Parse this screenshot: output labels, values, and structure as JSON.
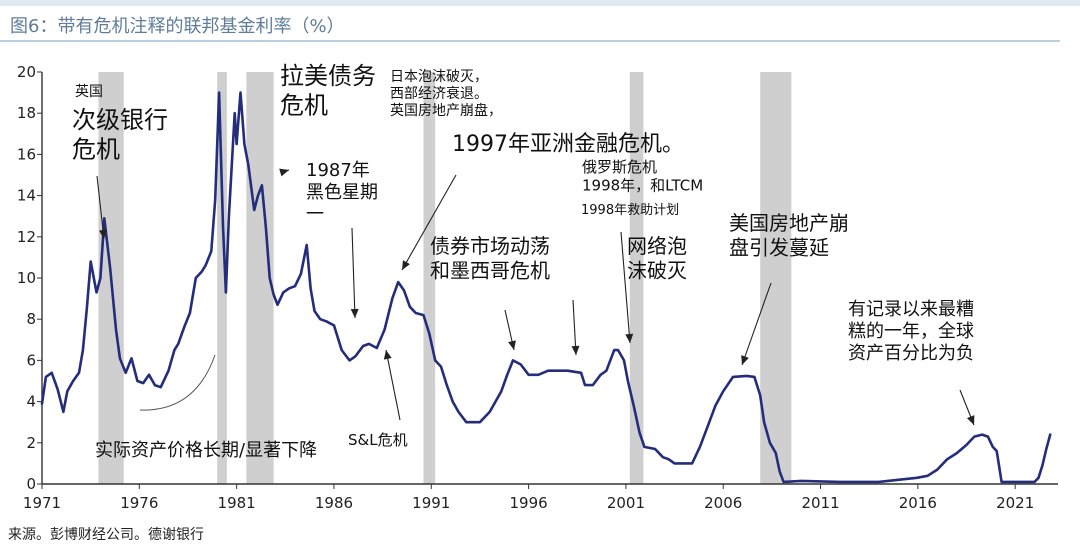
{
  "title": "图6：带有危机注释的联邦基金利率（%）",
  "source": "来源。彭博财经公司。德谢银行",
  "colors": {
    "line": "#232d7c",
    "recession": "#cfcfcf",
    "axis": "#333333",
    "title": "#5f7d9a",
    "arrow": "#222222"
  },
  "chart_data": {
    "type": "line",
    "title": "图6：带有危机注释的联邦基金利率（%）",
    "xlabel": "",
    "ylabel": "",
    "xlim": [
      1971,
      2023.2
    ],
    "ylim": [
      0,
      20
    ],
    "xticks": [
      1971,
      1976,
      1981,
      1986,
      1991,
      1996,
      2001,
      2006,
      2011,
      2016,
      2021
    ],
    "yticks": [
      0,
      2,
      4,
      6,
      8,
      10,
      12,
      14,
      16,
      18,
      20
    ],
    "grid": false,
    "legend": "none",
    "recessions": [
      [
        1973.9,
        1975.2
      ],
      [
        1980.0,
        1980.5
      ],
      [
        1981.5,
        1982.9
      ],
      [
        1990.6,
        1991.2
      ],
      [
        2001.2,
        2001.9
      ],
      [
        2007.9,
        2009.5
      ]
    ],
    "series": [
      {
        "x": [
          1971.0,
          1971.2,
          1971.5,
          1971.8,
          1972.1,
          1972.3,
          1972.6,
          1972.9,
          1973.1,
          1973.3,
          1973.5,
          1973.8,
          1974.0,
          1974.2,
          1974.5,
          1974.8,
          1975.0,
          1975.3,
          1975.6,
          1975.9,
          1976.2,
          1976.5,
          1976.8,
          1977.1,
          1977.5,
          1977.8,
          1978.0,
          1978.3,
          1978.6,
          1978.9,
          1979.2,
          1979.4,
          1979.7,
          1979.9,
          1980.1,
          1980.3,
          1980.45,
          1980.6,
          1980.9,
          1981.0,
          1981.2,
          1981.4,
          1981.6,
          1981.9,
          1982.1,
          1982.3,
          1982.5,
          1982.7,
          1982.9,
          1983.1,
          1983.4,
          1983.7,
          1984.0,
          1984.3,
          1984.6,
          1984.8,
          1985.0,
          1985.3,
          1985.6,
          1986.0,
          1986.4,
          1986.8,
          1987.1,
          1987.5,
          1987.8,
          1988.2,
          1988.6,
          1989.0,
          1989.3,
          1989.6,
          1989.9,
          1990.2,
          1990.6,
          1990.9,
          1991.2,
          1991.5,
          1991.8,
          1992.1,
          1992.4,
          1992.8,
          1993.5,
          1994.0,
          1994.3,
          1994.6,
          1994.9,
          1995.2,
          1995.6,
          1996.0,
          1996.5,
          1997.0,
          1997.4,
          1998.0,
          1998.7,
          1998.9,
          1999.3,
          1999.7,
          2000.0,
          2000.4,
          2000.6,
          2000.9,
          2001.1,
          2001.4,
          2001.7,
          2001.95,
          2002.5,
          2002.9,
          2003.2,
          2003.5,
          2004.4,
          2004.8,
          2005.2,
          2005.6,
          2006.0,
          2006.5,
          2007.2,
          2007.6,
          2007.9,
          2008.1,
          2008.4,
          2008.7,
          2008.9,
          2009.1,
          2010.0,
          2012.0,
          2014.0,
          2015.95,
          2016.5,
          2017.0,
          2017.5,
          2018.0,
          2018.5,
          2018.9,
          2019.3,
          2019.6,
          2019.85,
          2020.05,
          2020.3,
          2020.6,
          2021.0,
          2021.5,
          2022.0,
          2022.2,
          2022.4,
          2022.6,
          2022.8
        ],
        "values": [
          3.9,
          5.2,
          5.4,
          4.6,
          3.5,
          4.5,
          5.0,
          5.4,
          6.5,
          8.5,
          10.8,
          9.3,
          10.0,
          12.9,
          10.5,
          7.5,
          6.1,
          5.4,
          6.1,
          5.0,
          4.9,
          5.3,
          4.8,
          4.7,
          5.5,
          6.5,
          6.8,
          7.6,
          8.3,
          10.0,
          10.3,
          10.6,
          11.3,
          13.8,
          19.0,
          12.5,
          9.3,
          13.0,
          18.0,
          16.5,
          19.0,
          16.5,
          15.5,
          13.3,
          14.0,
          14.5,
          12.5,
          10.0,
          9.2,
          8.7,
          9.3,
          9.5,
          9.6,
          10.2,
          11.6,
          9.5,
          8.4,
          8.0,
          7.9,
          7.7,
          6.5,
          6.0,
          6.2,
          6.7,
          6.8,
          6.6,
          7.5,
          9.0,
          9.8,
          9.4,
          8.6,
          8.3,
          8.2,
          7.3,
          6.0,
          5.7,
          4.8,
          4.0,
          3.5,
          3.0,
          3.0,
          3.5,
          4.0,
          4.5,
          5.3,
          6.0,
          5.8,
          5.3,
          5.3,
          5.5,
          5.5,
          5.5,
          5.4,
          4.8,
          4.8,
          5.3,
          5.5,
          6.5,
          6.5,
          6.0,
          5.0,
          3.8,
          2.5,
          1.8,
          1.7,
          1.3,
          1.2,
          1.0,
          1.0,
          1.8,
          2.8,
          3.8,
          4.5,
          5.2,
          5.25,
          5.2,
          4.3,
          3.0,
          2.0,
          1.5,
          0.6,
          0.1,
          0.15,
          0.1,
          0.1,
          0.3,
          0.4,
          0.7,
          1.2,
          1.5,
          1.9,
          2.3,
          2.4,
          2.3,
          1.8,
          1.6,
          0.1,
          0.1,
          0.1,
          0.1,
          0.1,
          0.3,
          0.9,
          1.7,
          2.4
        ]
      }
    ],
    "annotations": [
      {
        "id": "uk",
        "text": [
          "英国"
        ],
        "size": 14
      },
      {
        "id": "subprime",
        "text": [
          "次级银行",
          "危机"
        ],
        "size": 24
      },
      {
        "id": "latam",
        "text": [
          "拉美债务",
          "危机"
        ],
        "size": 24
      },
      {
        "id": "japan",
        "text": [
          "日本泡沫破灭，",
          "西部经济衰退。",
          "英国房地产崩盘，"
        ],
        "size": 14
      },
      {
        "id": "asia1997",
        "text": [
          "1997年亚洲金融危机。"
        ],
        "size": 22
      },
      {
        "id": "russia",
        "text": [
          "俄罗斯危机",
          "1998年，和LTCM"
        ],
        "size": 15
      },
      {
        "id": "ltcm",
        "text": [
          "1998年救助计划"
        ],
        "size": 13
      },
      {
        "id": "bm1987",
        "text": [
          "1987年",
          "黑色星期",
          "一"
        ],
        "size": 18
      },
      {
        "id": "bond",
        "text": [
          "债券市场动荡",
          "和墨西哥危机"
        ],
        "size": 20
      },
      {
        "id": "dotcom",
        "text": [
          "网络泡",
          "沫破灭"
        ],
        "size": 20
      },
      {
        "id": "housing",
        "text": [
          "美国房地产崩",
          "盘引发蔓延"
        ],
        "size": 20
      },
      {
        "id": "worst",
        "text": [
          "有记录以来最糟",
          "糕的一年，全球",
          "资产百分比为负"
        ],
        "size": 18
      },
      {
        "id": "sl",
        "text": [
          "S&L危机"
        ],
        "size": 15
      },
      {
        "id": "real",
        "text": [
          "实际资产价格长期/显著下降"
        ],
        "size": 18
      }
    ]
  }
}
